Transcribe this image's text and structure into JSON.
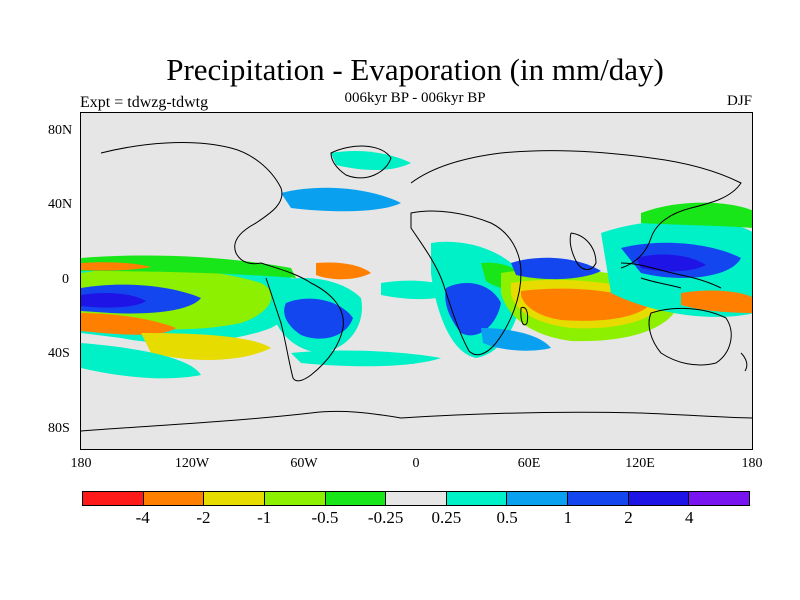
{
  "title": "Precipitation - Evaporation (in mm/day)",
  "subtitle": "006kyr BP - 006kyr BP",
  "left_label": "Expt = tdwzg-tdwtg",
  "right_label": "DJF",
  "lat_ticks": [
    "80N",
    "40N",
    "0",
    "40S",
    "80S"
  ],
  "lon_ticks": [
    "180",
    "120W",
    "60W",
    "0",
    "60E",
    "120E",
    "180"
  ],
  "colorbar": {
    "colors": [
      "#ff1a1a",
      "#ff8000",
      "#e6dc00",
      "#8cf000",
      "#19e619",
      "#e6e6e6",
      "#00f0c8",
      "#0aa0f0",
      "#1446f0",
      "#1e14e6",
      "#7814f0"
    ],
    "labels": [
      "-4",
      "-2",
      "-1",
      "-0.5",
      "-0.25",
      "0.25",
      "0.5",
      "1",
      "2",
      "4"
    ]
  },
  "map_features": {
    "ocean_bg": "#e6e6e6",
    "coast_color": "#000000"
  }
}
